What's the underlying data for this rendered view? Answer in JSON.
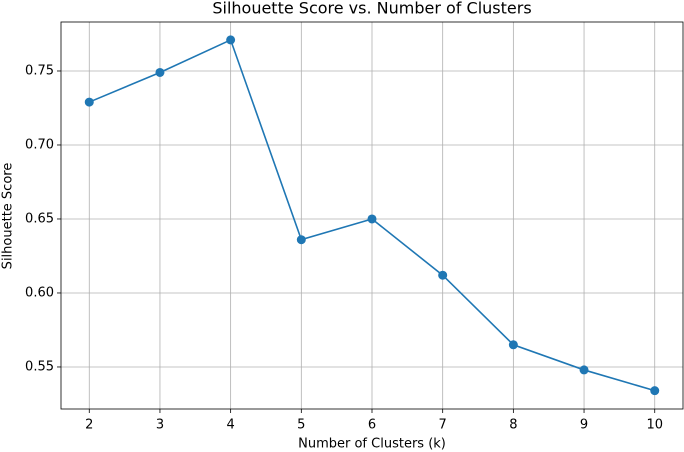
{
  "chart_data": {
    "type": "line",
    "title": "Silhouette Score vs. Number of Clusters",
    "x_label": "Number of Clusters (k)",
    "y_label": "Silhouette Score",
    "x": [
      2,
      3,
      4,
      5,
      6,
      7,
      8,
      9,
      10
    ],
    "series": [
      {
        "name": "Silhouette Score",
        "color": "#1f77b4",
        "values": [
          0.729,
          0.749,
          0.771,
          0.636,
          0.65,
          0.612,
          0.565,
          0.548,
          0.534
        ]
      }
    ],
    "xlim": [
      1.6,
      10.4
    ],
    "xticks": [
      2,
      3,
      4,
      5,
      6,
      7,
      8,
      9,
      10
    ],
    "ylim": [
      0.5216,
      0.7831
    ],
    "yticks": [
      0.55,
      {
        "value": 0.6,
        "label": "0.60"
      },
      0.65,
      {
        "value": 0.7,
        "label": "0.70"
      },
      0.75
    ],
    "grid": true
  }
}
